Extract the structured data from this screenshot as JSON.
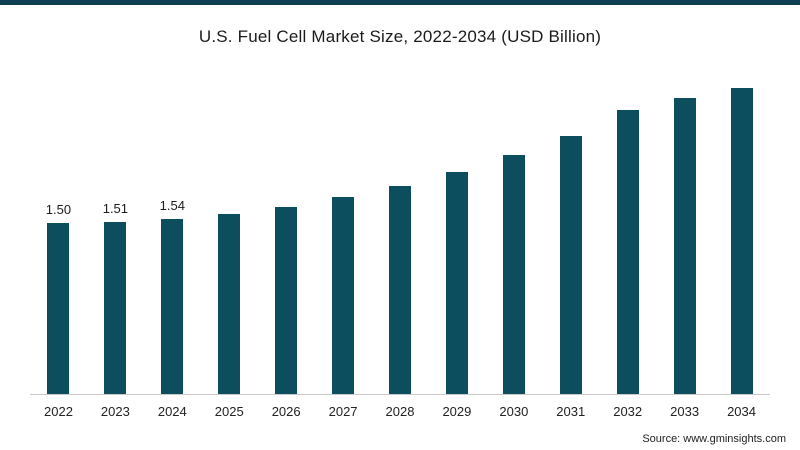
{
  "page": {
    "source_label": "Source: www.gminsights.com"
  },
  "colors": {
    "bar": "#0d4e5e",
    "top_rule": "#0d3e52",
    "axis_line": "#c9c9c9"
  },
  "chart_data": {
    "type": "bar",
    "title": "U.S. Fuel Cell Market Size, 2022-2034 (USD Billion)",
    "xlabel": "",
    "ylabel": "",
    "categories": [
      "2022",
      "2023",
      "2024",
      "2025",
      "2026",
      "2027",
      "2028",
      "2029",
      "2030",
      "2031",
      "2032",
      "2033",
      "2034"
    ],
    "values": [
      1.5,
      1.51,
      1.54,
      1.58,
      1.64,
      1.73,
      1.83,
      1.95,
      2.1,
      2.27,
      2.5,
      2.6,
      2.69
    ],
    "data_labels": [
      "1.50",
      "1.51",
      "1.54",
      "",
      "",
      "",
      "",
      "",
      "",
      "",
      "",
      "",
      ""
    ],
    "ylim": [
      0,
      2.9
    ],
    "grid": false,
    "legend": false,
    "bar_color": "#0d4e5e",
    "source": "Source: www.gminsights.com"
  }
}
